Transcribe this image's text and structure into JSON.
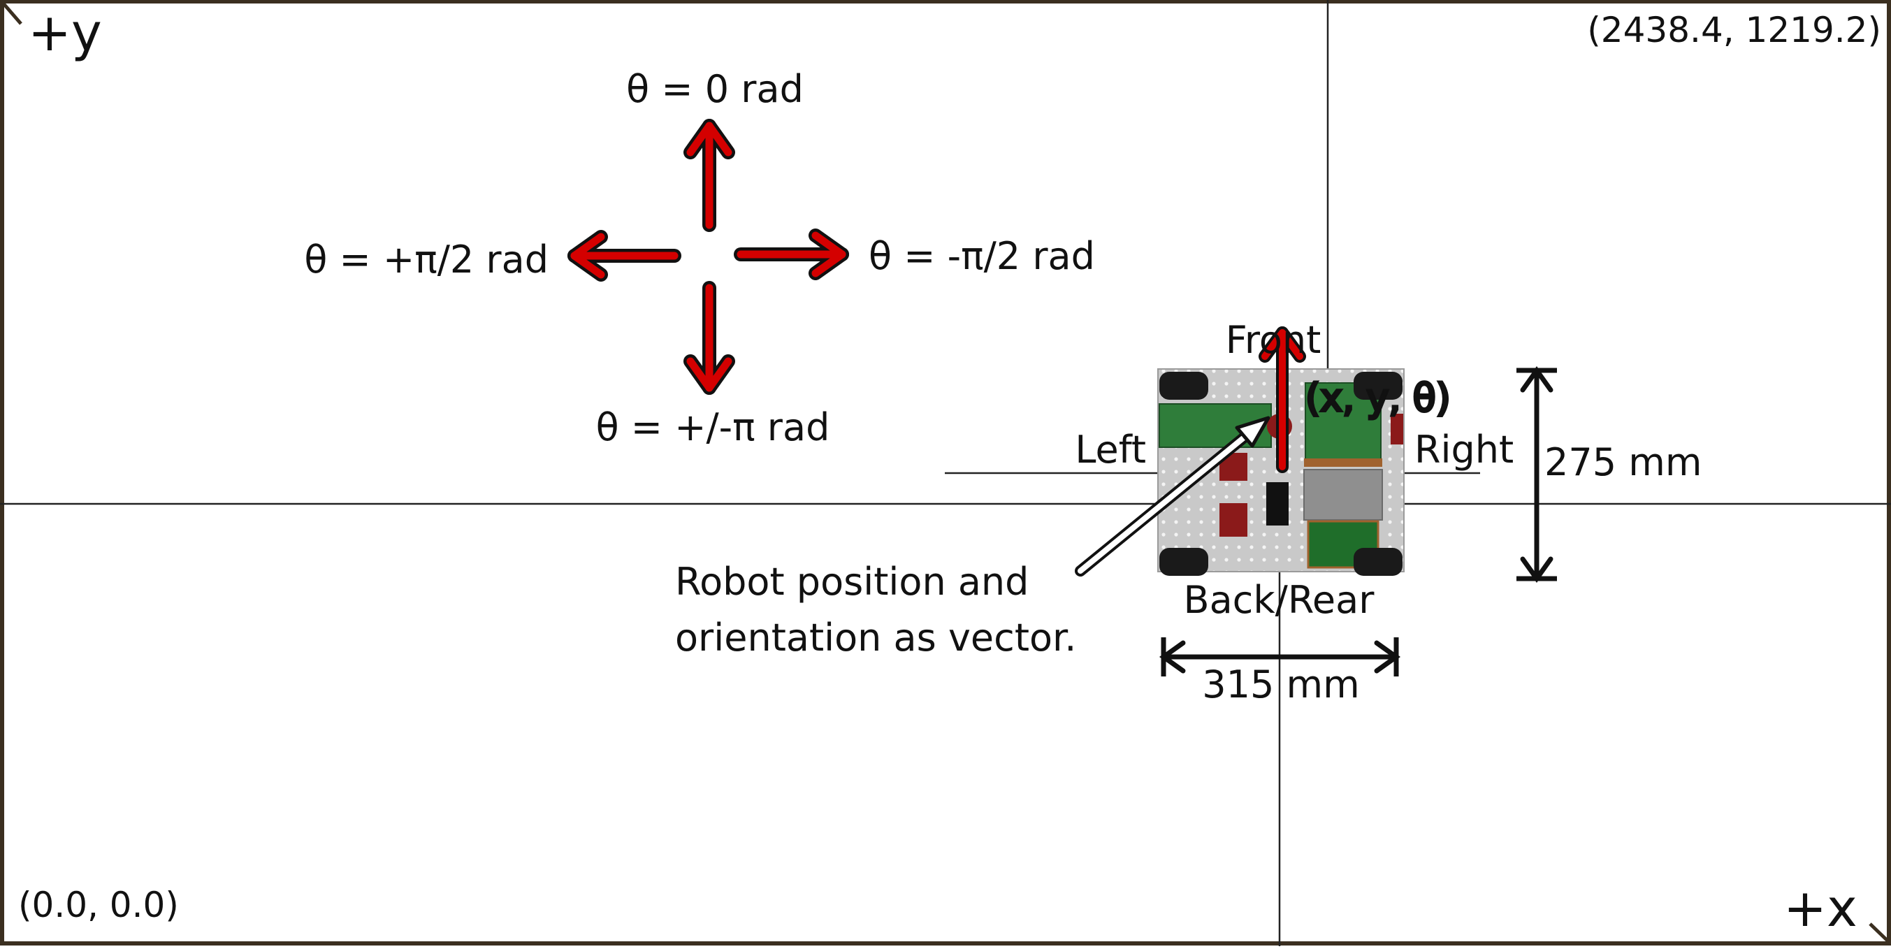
{
  "axes": {
    "y_label": "+y",
    "x_label": "+x",
    "origin_label": "(0.0, 0.0)",
    "max_corner_label": "(2438.4, 1219.2)"
  },
  "orientation": {
    "up_label": "θ = 0 rad",
    "left_label": "θ = +π/2 rad",
    "right_label": "θ = -π/2 rad",
    "down_label": "θ = +/-π rad"
  },
  "robot": {
    "front_label": "Front",
    "back_label": "Back/Rear",
    "left_label": "Left",
    "right_label": "Right",
    "pose_label": "(x, y, θ)",
    "note_line1": "Robot position and",
    "note_line2": "orientation as vector.",
    "width_label": "315 mm",
    "height_label": "275 mm"
  },
  "colors": {
    "arrow_fill": "#d40000",
    "arrow_outline": "#111111",
    "frame": "#3b2f20",
    "robot_plate": "#c8c8c8",
    "robot_green": "#2f7d3a",
    "robot_red": "#8b1a1a"
  }
}
